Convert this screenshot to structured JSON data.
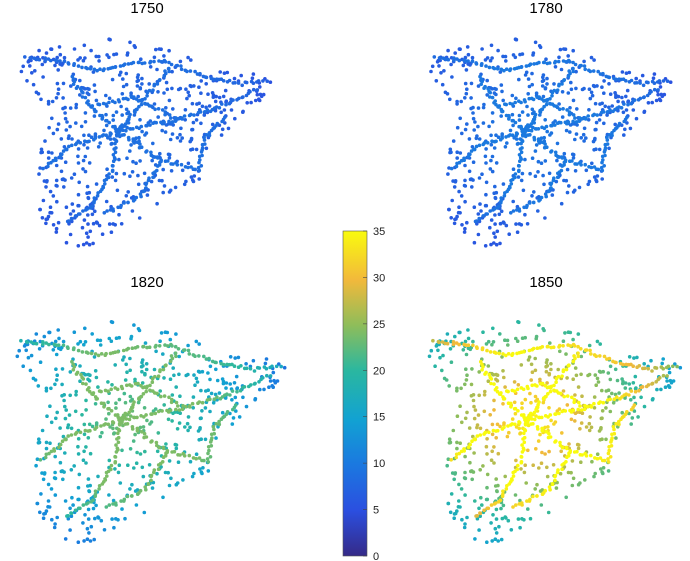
{
  "chart_data": [
    {
      "type": "scatter",
      "title": "1750",
      "note_values": "color value per point, mostly low",
      "value_range": [
        5,
        9
      ]
    },
    {
      "type": "scatter",
      "title": "1780",
      "value_range": [
        5,
        10
      ]
    },
    {
      "type": "scatter",
      "title": "1820",
      "value_range": [
        8,
        24
      ]
    },
    {
      "type": "scatter",
      "title": "1850",
      "value_range": [
        12,
        35
      ]
    }
  ],
  "colorbar": {
    "min": 0,
    "max": 35,
    "ticks": [
      "0",
      "5",
      "10",
      "15",
      "20",
      "25",
      "30",
      "35"
    ],
    "colormap": "parula"
  }
}
